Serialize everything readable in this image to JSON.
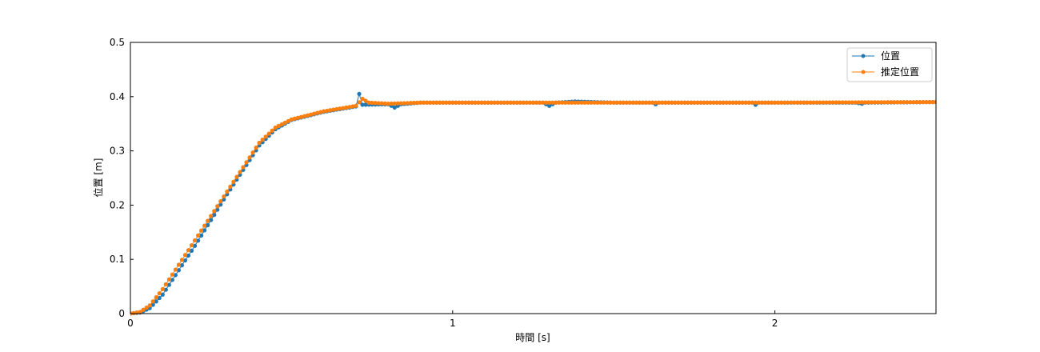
{
  "chart_data": {
    "type": "line",
    "title": "",
    "xlabel": "時間 [s]",
    "ylabel": "位置 [m]",
    "xlim": [
      0,
      2.5
    ],
    "ylim": [
      0,
      0.5
    ],
    "xticks": [
      0,
      1,
      2
    ],
    "xtick_labels": [
      "0",
      "1",
      "2"
    ],
    "yticks": [
      0,
      0.1,
      0.2,
      0.3,
      0.4,
      0.5
    ],
    "ytick_labels": [
      "0",
      "0.1",
      "0.2",
      "0.3",
      "0.4",
      "0.5"
    ],
    "grid": false,
    "legend_position": "top-right",
    "sample_interval_s": 0.01,
    "series": [
      {
        "name": "位置",
        "color": "#1f77b4",
        "marker": "circle",
        "keypoints": [
          [
            0,
            0
          ],
          [
            0.03,
            0.002
          ],
          [
            0.06,
            0.01
          ],
          [
            0.1,
            0.035
          ],
          [
            0.2,
            0.125
          ],
          [
            0.3,
            0.22
          ],
          [
            0.4,
            0.31
          ],
          [
            0.45,
            0.34
          ],
          [
            0.5,
            0.357
          ],
          [
            0.6,
            0.372
          ],
          [
            0.7,
            0.382
          ],
          [
            0.71,
            0.405
          ],
          [
            0.72,
            0.385
          ],
          [
            0.8,
            0.386
          ],
          [
            0.82,
            0.38
          ],
          [
            0.84,
            0.386
          ],
          [
            0.9,
            0.389
          ],
          [
            1.0,
            0.389
          ],
          [
            1.28,
            0.389
          ],
          [
            1.3,
            0.383
          ],
          [
            1.32,
            0.389
          ],
          [
            1.38,
            0.391
          ],
          [
            1.5,
            0.389
          ],
          [
            1.62,
            0.389
          ],
          [
            1.63,
            0.386
          ],
          [
            1.64,
            0.389
          ],
          [
            1.93,
            0.389
          ],
          [
            1.94,
            0.385
          ],
          [
            1.95,
            0.389
          ],
          [
            2.25,
            0.389
          ],
          [
            2.27,
            0.387
          ],
          [
            2.28,
            0.389
          ],
          [
            2.5,
            0.39
          ]
        ]
      },
      {
        "name": "推定位置",
        "color": "#ff7f0e",
        "marker": "circle",
        "keypoints": [
          [
            0,
            0
          ],
          [
            0.03,
            0.003
          ],
          [
            0.06,
            0.015
          ],
          [
            0.1,
            0.045
          ],
          [
            0.2,
            0.135
          ],
          [
            0.3,
            0.225
          ],
          [
            0.4,
            0.315
          ],
          [
            0.45,
            0.343
          ],
          [
            0.5,
            0.358
          ],
          [
            0.6,
            0.373
          ],
          [
            0.7,
            0.383
          ],
          [
            0.72,
            0.396
          ],
          [
            0.74,
            0.389
          ],
          [
            0.8,
            0.387
          ],
          [
            0.9,
            0.389
          ],
          [
            1.0,
            0.389
          ],
          [
            1.5,
            0.389
          ],
          [
            2.0,
            0.389
          ],
          [
            2.5,
            0.39
          ]
        ]
      }
    ]
  }
}
